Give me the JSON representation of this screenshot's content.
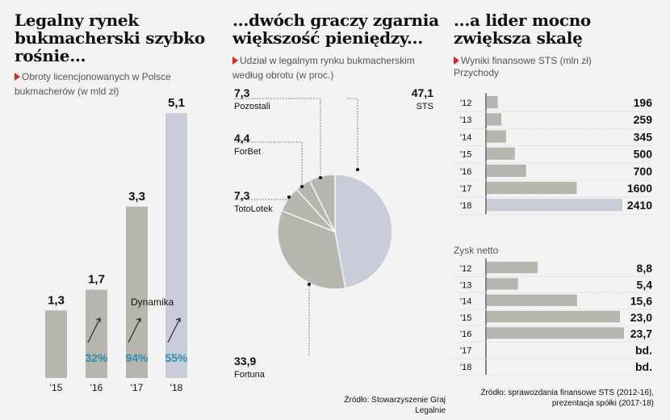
{
  "colors": {
    "gray": "#b7b6ae",
    "highlight": "#c9ccd9",
    "accent": "#e0261d",
    "growth": "#2b8fb0",
    "bg": "#f3f3f3"
  },
  "panel1": {
    "title": "Legalny rynek bukmacherski szybko rośnie...",
    "subtitle": "Obroty licencjonowanych w Polsce bukmacherów (w mld zł)",
    "dynamics_label": "Dynamika"
  },
  "panel2": {
    "title": "...dwóch graczy zgarnia większość pieniędzy...",
    "subtitle": "Udział w legalnym rynku bukmacherskim według obrotu (w proc.)"
  },
  "panel3": {
    "title": "...a lider mocno zwiększa skalę",
    "subtitle": "Wyniki finansowe STS (mln zł)",
    "revenue_title": "Przychody",
    "profit_title": "Zysk netto"
  },
  "source1": "Źródło: Stowarzyszenie Graj Legalnie",
  "source2": "Źródło: sprawozdania finansowe STS (2012-16), prezentacja spółki (2017-18)",
  "chart_data": [
    {
      "type": "bar",
      "title": "Obroty licencjonowanych w Polsce bukmacherów (w mld zł)",
      "categories": [
        "'15",
        "'16",
        "'17",
        "'18"
      ],
      "values": [
        1.3,
        1.7,
        3.3,
        5.1
      ],
      "labels": [
        "1,3",
        "1,7",
        "3,3",
        "5,1"
      ],
      "growth": [
        "",
        "32%",
        "94%",
        "55%"
      ],
      "highlight_index": 3,
      "ylim": [
        0,
        5.1
      ]
    },
    {
      "type": "pie",
      "title": "Udział w legalnym rynku bukmacherskim według obrotu (w proc.)",
      "slices": [
        {
          "name": "STS",
          "value": 47.1,
          "label": "47,1"
        },
        {
          "name": "Fortuna",
          "value": 33.9,
          "label": "33,9"
        },
        {
          "name": "TotoLotek",
          "value": 7.3,
          "label": "7,3"
        },
        {
          "name": "ForBet",
          "value": 4.4,
          "label": "4,4"
        },
        {
          "name": "Pozostali",
          "value": 7.3,
          "label": "7,3"
        }
      ]
    },
    {
      "type": "bar",
      "orientation": "horizontal",
      "title": "Przychody",
      "categories": [
        "'12",
        "'13",
        "'14",
        "'15",
        "'16",
        "'17",
        "'18"
      ],
      "values": [
        196,
        259,
        345,
        500,
        700,
        1600,
        2410
      ],
      "labels": [
        "196",
        "259",
        "345",
        "500",
        "700",
        "1600",
        "2410"
      ],
      "highlight_index": 6,
      "xlim": [
        0,
        2410
      ]
    },
    {
      "type": "bar",
      "orientation": "horizontal",
      "title": "Zysk netto",
      "categories": [
        "'12",
        "'13",
        "'14",
        "'15",
        "'16",
        "'17",
        "'18"
      ],
      "values": [
        8.8,
        5.4,
        15.6,
        23.0,
        23.7,
        null,
        null
      ],
      "labels": [
        "8,8",
        "5,4",
        "15,6",
        "23,0",
        "23,7",
        "bd.",
        "bd."
      ],
      "xlim": [
        0,
        23.7
      ]
    }
  ]
}
